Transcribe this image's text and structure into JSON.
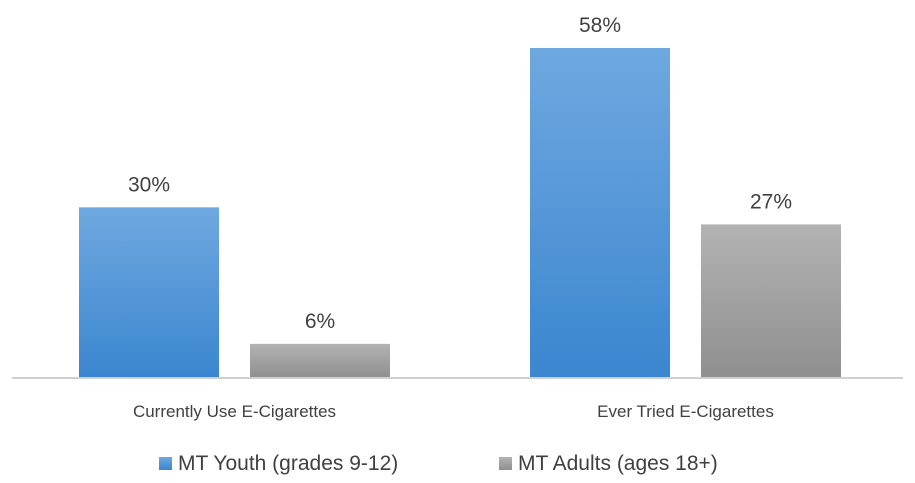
{
  "chart_data": {
    "type": "bar",
    "categories": [
      "Currently Use E-Cigarettes",
      "Ever Tried E-Cigarettes"
    ],
    "series": [
      {
        "name": "MT Youth (grades 9-12)",
        "values": [
          30,
          58
        ],
        "labels": [
          "30%",
          "58%"
        ]
      },
      {
        "name": "MT Adults (ages 18+)",
        "values": [
          6,
          27
        ],
        "labels": [
          "6%",
          "27%"
        ]
      }
    ],
    "unit": "%",
    "ylim": [
      0,
      58
    ],
    "grid": false,
    "legend_position": "bottom",
    "colors": {
      "youth_top": "#6fa8e0",
      "youth_bottom": "#3a86cf",
      "adults_top": "#b3b3b3",
      "adults_bottom": "#8f8f8f",
      "axis": "#d0d0d0",
      "text": "#404040"
    }
  }
}
